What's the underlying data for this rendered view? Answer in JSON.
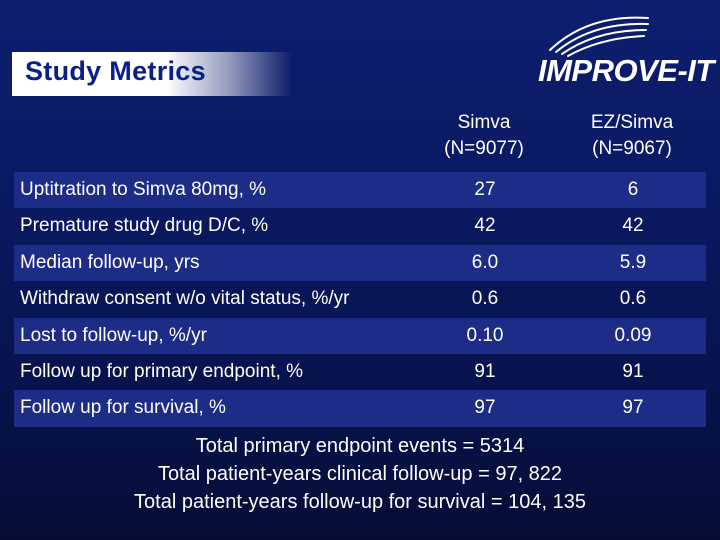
{
  "title": "Study Metrics",
  "logo": {
    "text": "IMPROVE-IT"
  },
  "columns": [
    {
      "name": "Simva",
      "n": "(N=9077)"
    },
    {
      "name": "EZ/Simva",
      "n": "(N=9067)"
    }
  ],
  "rows": [
    {
      "label": "Uptitration to Simva 80mg, %",
      "simva": "27",
      "ez_simva": "6"
    },
    {
      "label": "Premature study drug D/C, %",
      "simva": "42",
      "ez_simva": "42"
    },
    {
      "label": "Median follow-up, yrs",
      "simva": "6.0",
      "ez_simva": "5.9"
    },
    {
      "label": "Withdraw consent w/o vital status, %/yr",
      "simva": "0.6",
      "ez_simva": "0.6"
    },
    {
      "label": "Lost to follow-up, %/yr",
      "simva": "0.10",
      "ez_simva": "0.09"
    },
    {
      "label": "Follow up for primary endpoint, %",
      "simva": "91",
      "ez_simva": "91"
    },
    {
      "label": "Follow up for survival, %",
      "simva": "97",
      "ez_simva": "97"
    }
  ],
  "footer": [
    "Total primary endpoint events = 5314",
    "Total patient-years clinical follow-up = 97, 822",
    "Total patient-years follow-up for survival = 104, 135"
  ],
  "colors": {
    "background": "#0a1a63",
    "row_shade": "#1d2c86",
    "title_text": "#0b1f88",
    "text": "#ffffff"
  }
}
